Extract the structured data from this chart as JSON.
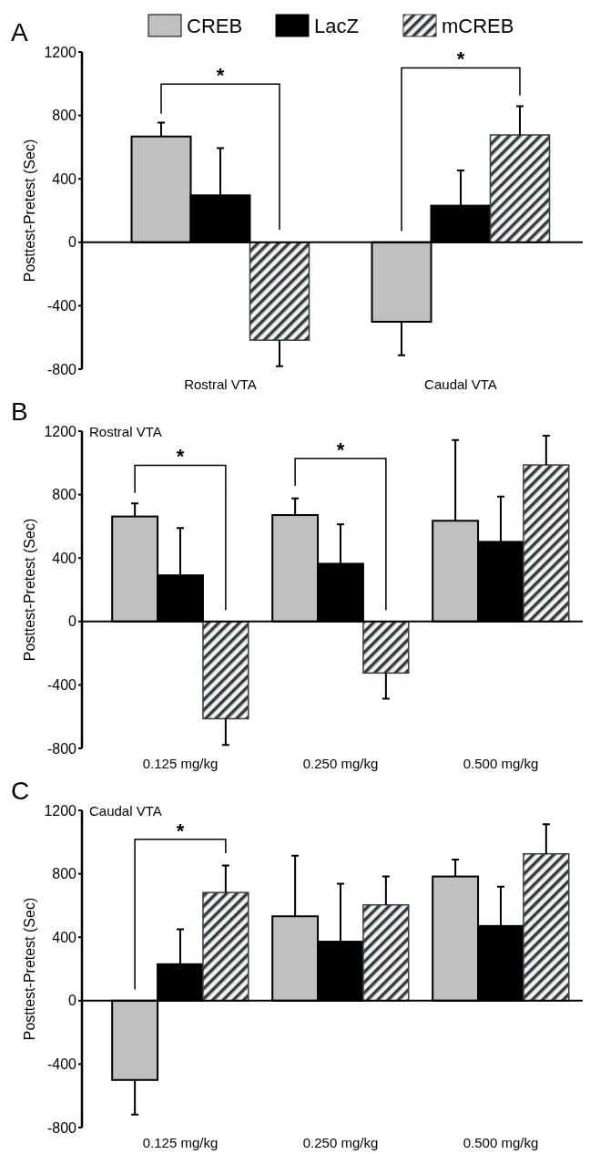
{
  "chart_data": [
    {
      "type": "bar",
      "title": "A",
      "ylabel": "Posttest-Pretest (Sec)",
      "categories": [
        "Rostral VTA",
        "Caudal VTA"
      ],
      "ylim": [
        -800,
        1200
      ],
      "yticks": [
        -800,
        -400,
        0,
        400,
        800,
        1200
      ],
      "legend": "top",
      "annotations": [
        "*",
        "*"
      ],
      "series": [
        {
          "name": "CREB",
          "color": "#c0c0c0",
          "values": [
            667,
            -501
          ],
          "errors": [
            [
              667,
              754
            ],
            [
              -713,
              -501
            ]
          ]
        },
        {
          "name": "LacZ",
          "color": "#000000",
          "values": [
            296,
            231
          ],
          "errors": [
            [
              296,
              593
            ],
            [
              231,
              453
            ]
          ]
        },
        {
          "name": "mCREB",
          "color": "#2f3f46",
          "values": [
            -617,
            677
          ],
          "errors": [
            [
              -781,
              -617
            ],
            [
              677,
              858
            ]
          ]
        }
      ]
    },
    {
      "type": "bar",
      "title": "B",
      "subtitle": "Rostral VTA",
      "ylabel": "Posttest-Pretest (Sec)",
      "categories": [
        "0.125 mg/kg",
        "0.250 mg/kg",
        "0.500 mg/kg"
      ],
      "ylim": [
        -800,
        1200
      ],
      "yticks": [
        -800,
        -400,
        0,
        400,
        800,
        1200
      ],
      "annotations": [
        "*",
        "*"
      ],
      "series": [
        {
          "color": "#c0c0c0",
          "values": [
            662,
            671,
            635
          ],
          "errors": [
            [
              662,
              744
            ],
            [
              671,
              776
            ],
            [
              635,
              1144
            ]
          ]
        },
        {
          "color": "#000000",
          "values": [
            291,
            364,
            502
          ],
          "errors": [
            [
              291,
              589
            ],
            [
              364,
              613
            ],
            [
              502,
              788
            ]
          ]
        },
        {
          "color": "#2f3f46",
          "values": [
            -613,
            -325,
            987
          ],
          "errors": [
            [
              -778,
              -613
            ],
            [
              -487,
              -325
            ],
            [
              987,
              1171
            ]
          ]
        }
      ]
    },
    {
      "type": "bar",
      "title": "C",
      "subtitle": "Caudal VTA",
      "ylabel": "Posttest-Pretest (Sec)",
      "categories": [
        "0.125 mg/kg",
        "0.250 mg/kg",
        "0.500 mg/kg"
      ],
      "ylim": [
        -800,
        1200
      ],
      "yticks": [
        -800,
        -400,
        0,
        400,
        800,
        1200
      ],
      "annotations": [
        "*"
      ],
      "series": [
        {
          "color": "#c0c0c0",
          "values": [
            -500,
            532,
            783
          ],
          "errors": [
            [
              -718,
              -500
            ],
            [
              532,
              914
            ],
            [
              783,
              889
            ]
          ]
        },
        {
          "color": "#000000",
          "values": [
            230,
            372,
            471
          ],
          "errors": [
            [
              230,
              450
            ],
            [
              372,
              737
            ],
            [
              471,
              718
            ]
          ]
        },
        {
          "color": "#2f3f46",
          "values": [
            682,
            604,
            926
          ],
          "errors": [
            [
              682,
              853
            ],
            [
              604,
              783
            ],
            [
              926,
              1112
            ]
          ]
        }
      ]
    }
  ]
}
